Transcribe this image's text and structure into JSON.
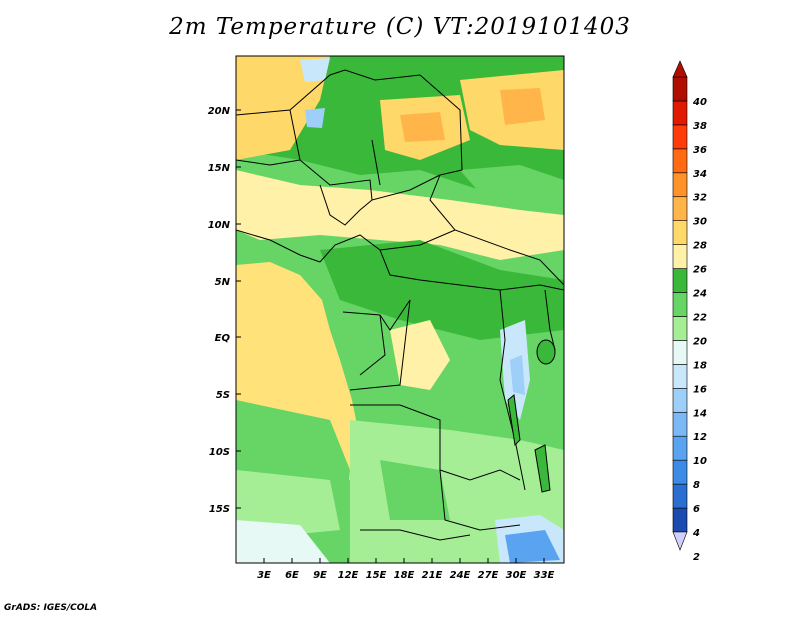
{
  "title": "2m Temperature (C) VT:2019101403",
  "credit": "GrADS: IGES/COLA",
  "map": {
    "lat_labels": [
      "20N",
      "15N",
      "10N",
      "5N",
      "EQ",
      "5S",
      "10S",
      "15S"
    ],
    "lon_labels": [
      "3E",
      "6E",
      "9E",
      "12E",
      "15E",
      "18E",
      "21E",
      "24E",
      "27E",
      "30E",
      "33E"
    ]
  },
  "colorbar": {
    "labels": [
      "2",
      "4",
      "6",
      "8",
      "10",
      "12",
      "14",
      "16",
      "18",
      "20",
      "22",
      "24",
      "26",
      "28",
      "30",
      "32",
      "34",
      "36",
      "38",
      "40"
    ],
    "colors": [
      "#12127a",
      "#1c4bb0",
      "#2a6fd0",
      "#3c8be6",
      "#5aa3f0",
      "#7ab9f5",
      "#9dcff8",
      "#c8e7fb",
      "#e6f9f4",
      "#a6ee96",
      "#66d566",
      "#3ab83a",
      "#fff1a8",
      "#ffd86a",
      "#ffb54a",
      "#ff9228",
      "#ff6a12",
      "#ff3d0a",
      "#e01a00",
      "#b00e00"
    ]
  }
}
